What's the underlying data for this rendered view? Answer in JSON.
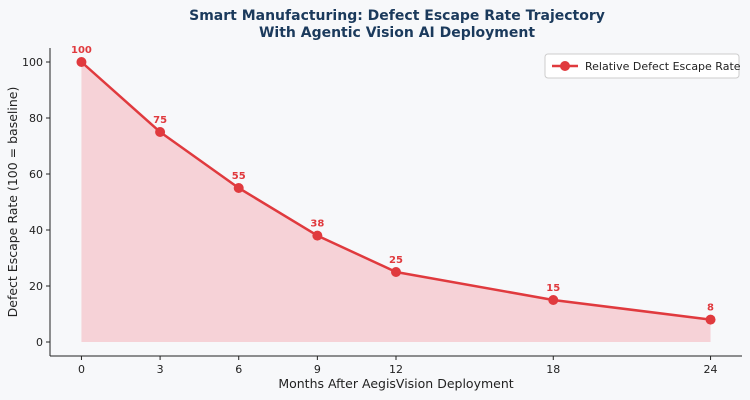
{
  "chart_data": {
    "type": "area",
    "title_line1": "Smart Manufacturing: Defect Escape Rate Trajectory",
    "title_line2": "With Agentic Vision AI Deployment",
    "xlabel": "Months After AegisVision Deployment",
    "ylabel": "Defect Escape Rate (100 = baseline)",
    "x": [
      0,
      3,
      6,
      9,
      12,
      18,
      24
    ],
    "x_ticks": [
      0,
      3,
      6,
      9,
      12,
      18,
      24
    ],
    "y_ticks": [
      0,
      20,
      40,
      60,
      80,
      100
    ],
    "xlim": [
      -1.2,
      25.2
    ],
    "ylim": [
      -5,
      105
    ],
    "grid": false,
    "legend_position": "top-right",
    "series": [
      {
        "name": "Relative Defect Escape Rate",
        "values": [
          100,
          75,
          55,
          38,
          25,
          15,
          8
        ],
        "color": "#e03a3e",
        "fill_color": "#f5c6cb"
      }
    ],
    "title_color": "#1b3a5c"
  }
}
